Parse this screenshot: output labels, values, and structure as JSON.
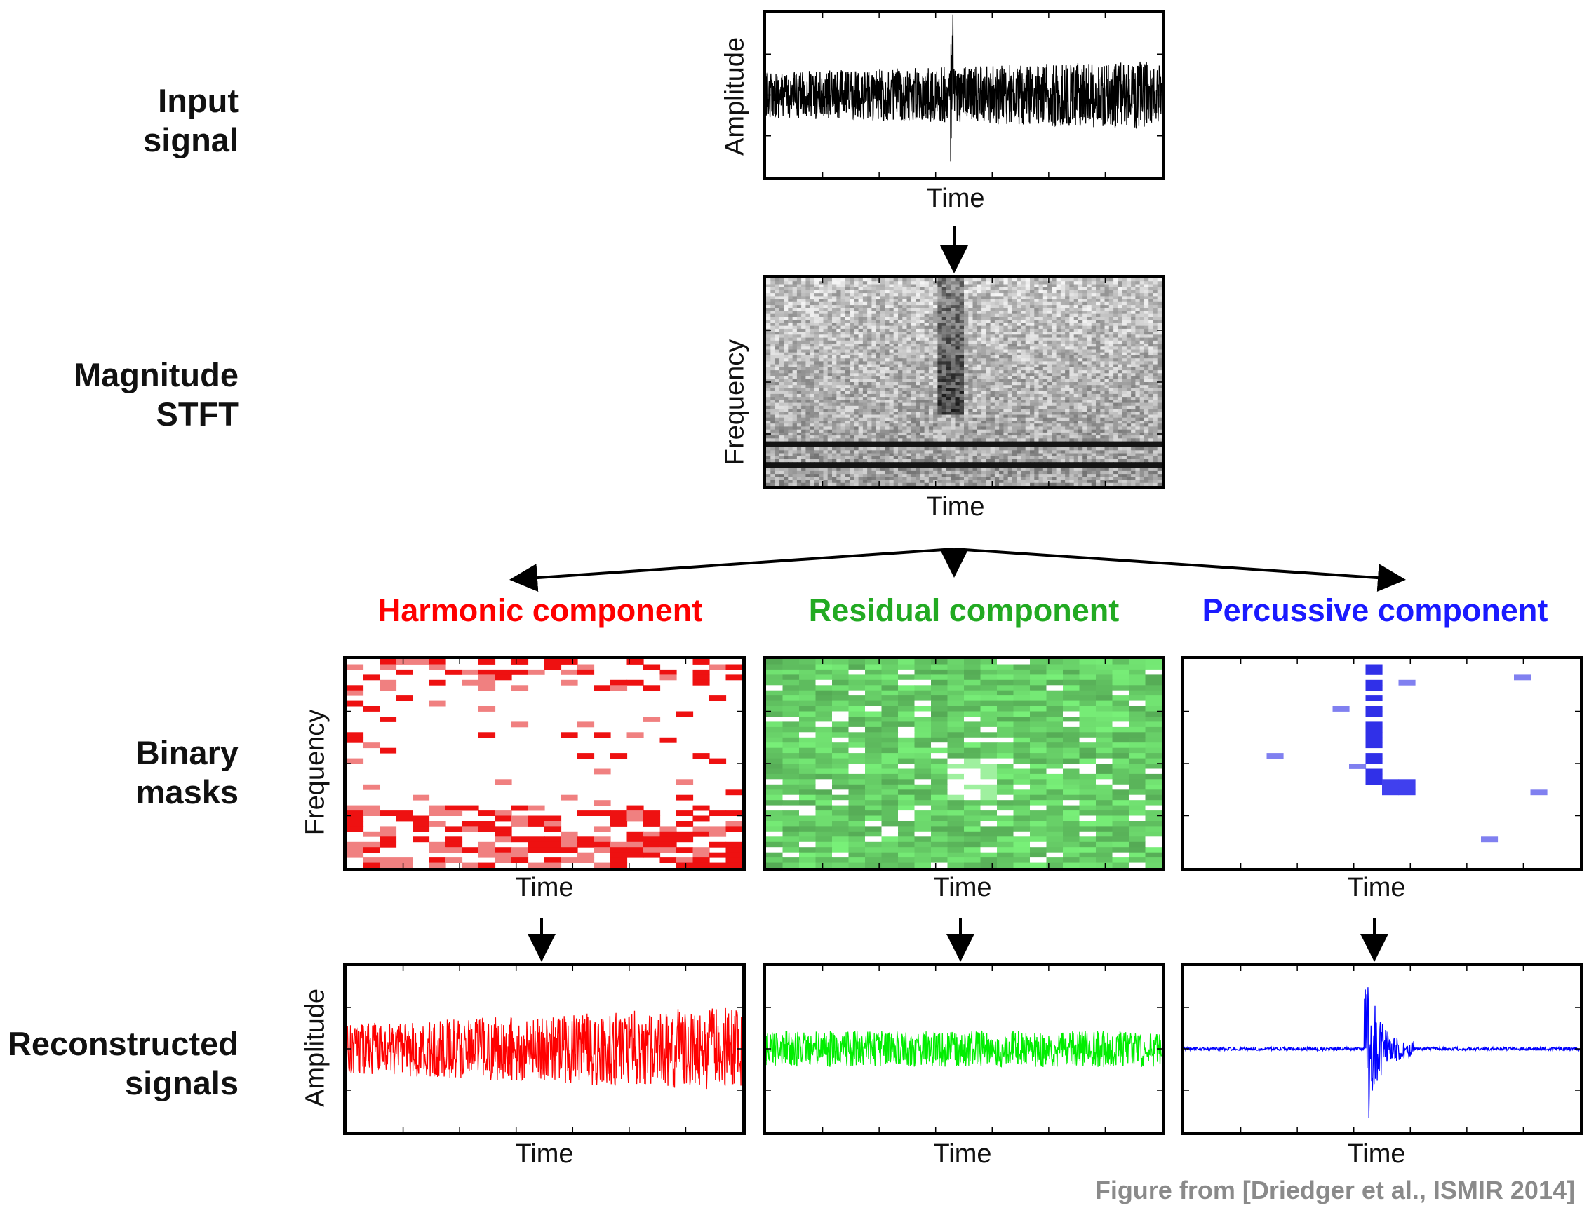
{
  "rows": {
    "input": "Input\nsignal",
    "stft": "Magnitude\nSTFT",
    "masks": "Binary\nmasks",
    "recon": "Reconstructed\nsignals"
  },
  "axes": {
    "time": "Time",
    "amplitude": "Amplitude",
    "frequency": "Frequency"
  },
  "components": {
    "harmonic": "Harmonic component",
    "residual": "Residual component",
    "percussive": "Percussive component"
  },
  "colors": {
    "harmonic": "#ff0000",
    "residual": "#00dd00",
    "percussive": "#0000ff"
  },
  "credit": "Figure from [Driedger et al., ISMIR 2014]"
}
